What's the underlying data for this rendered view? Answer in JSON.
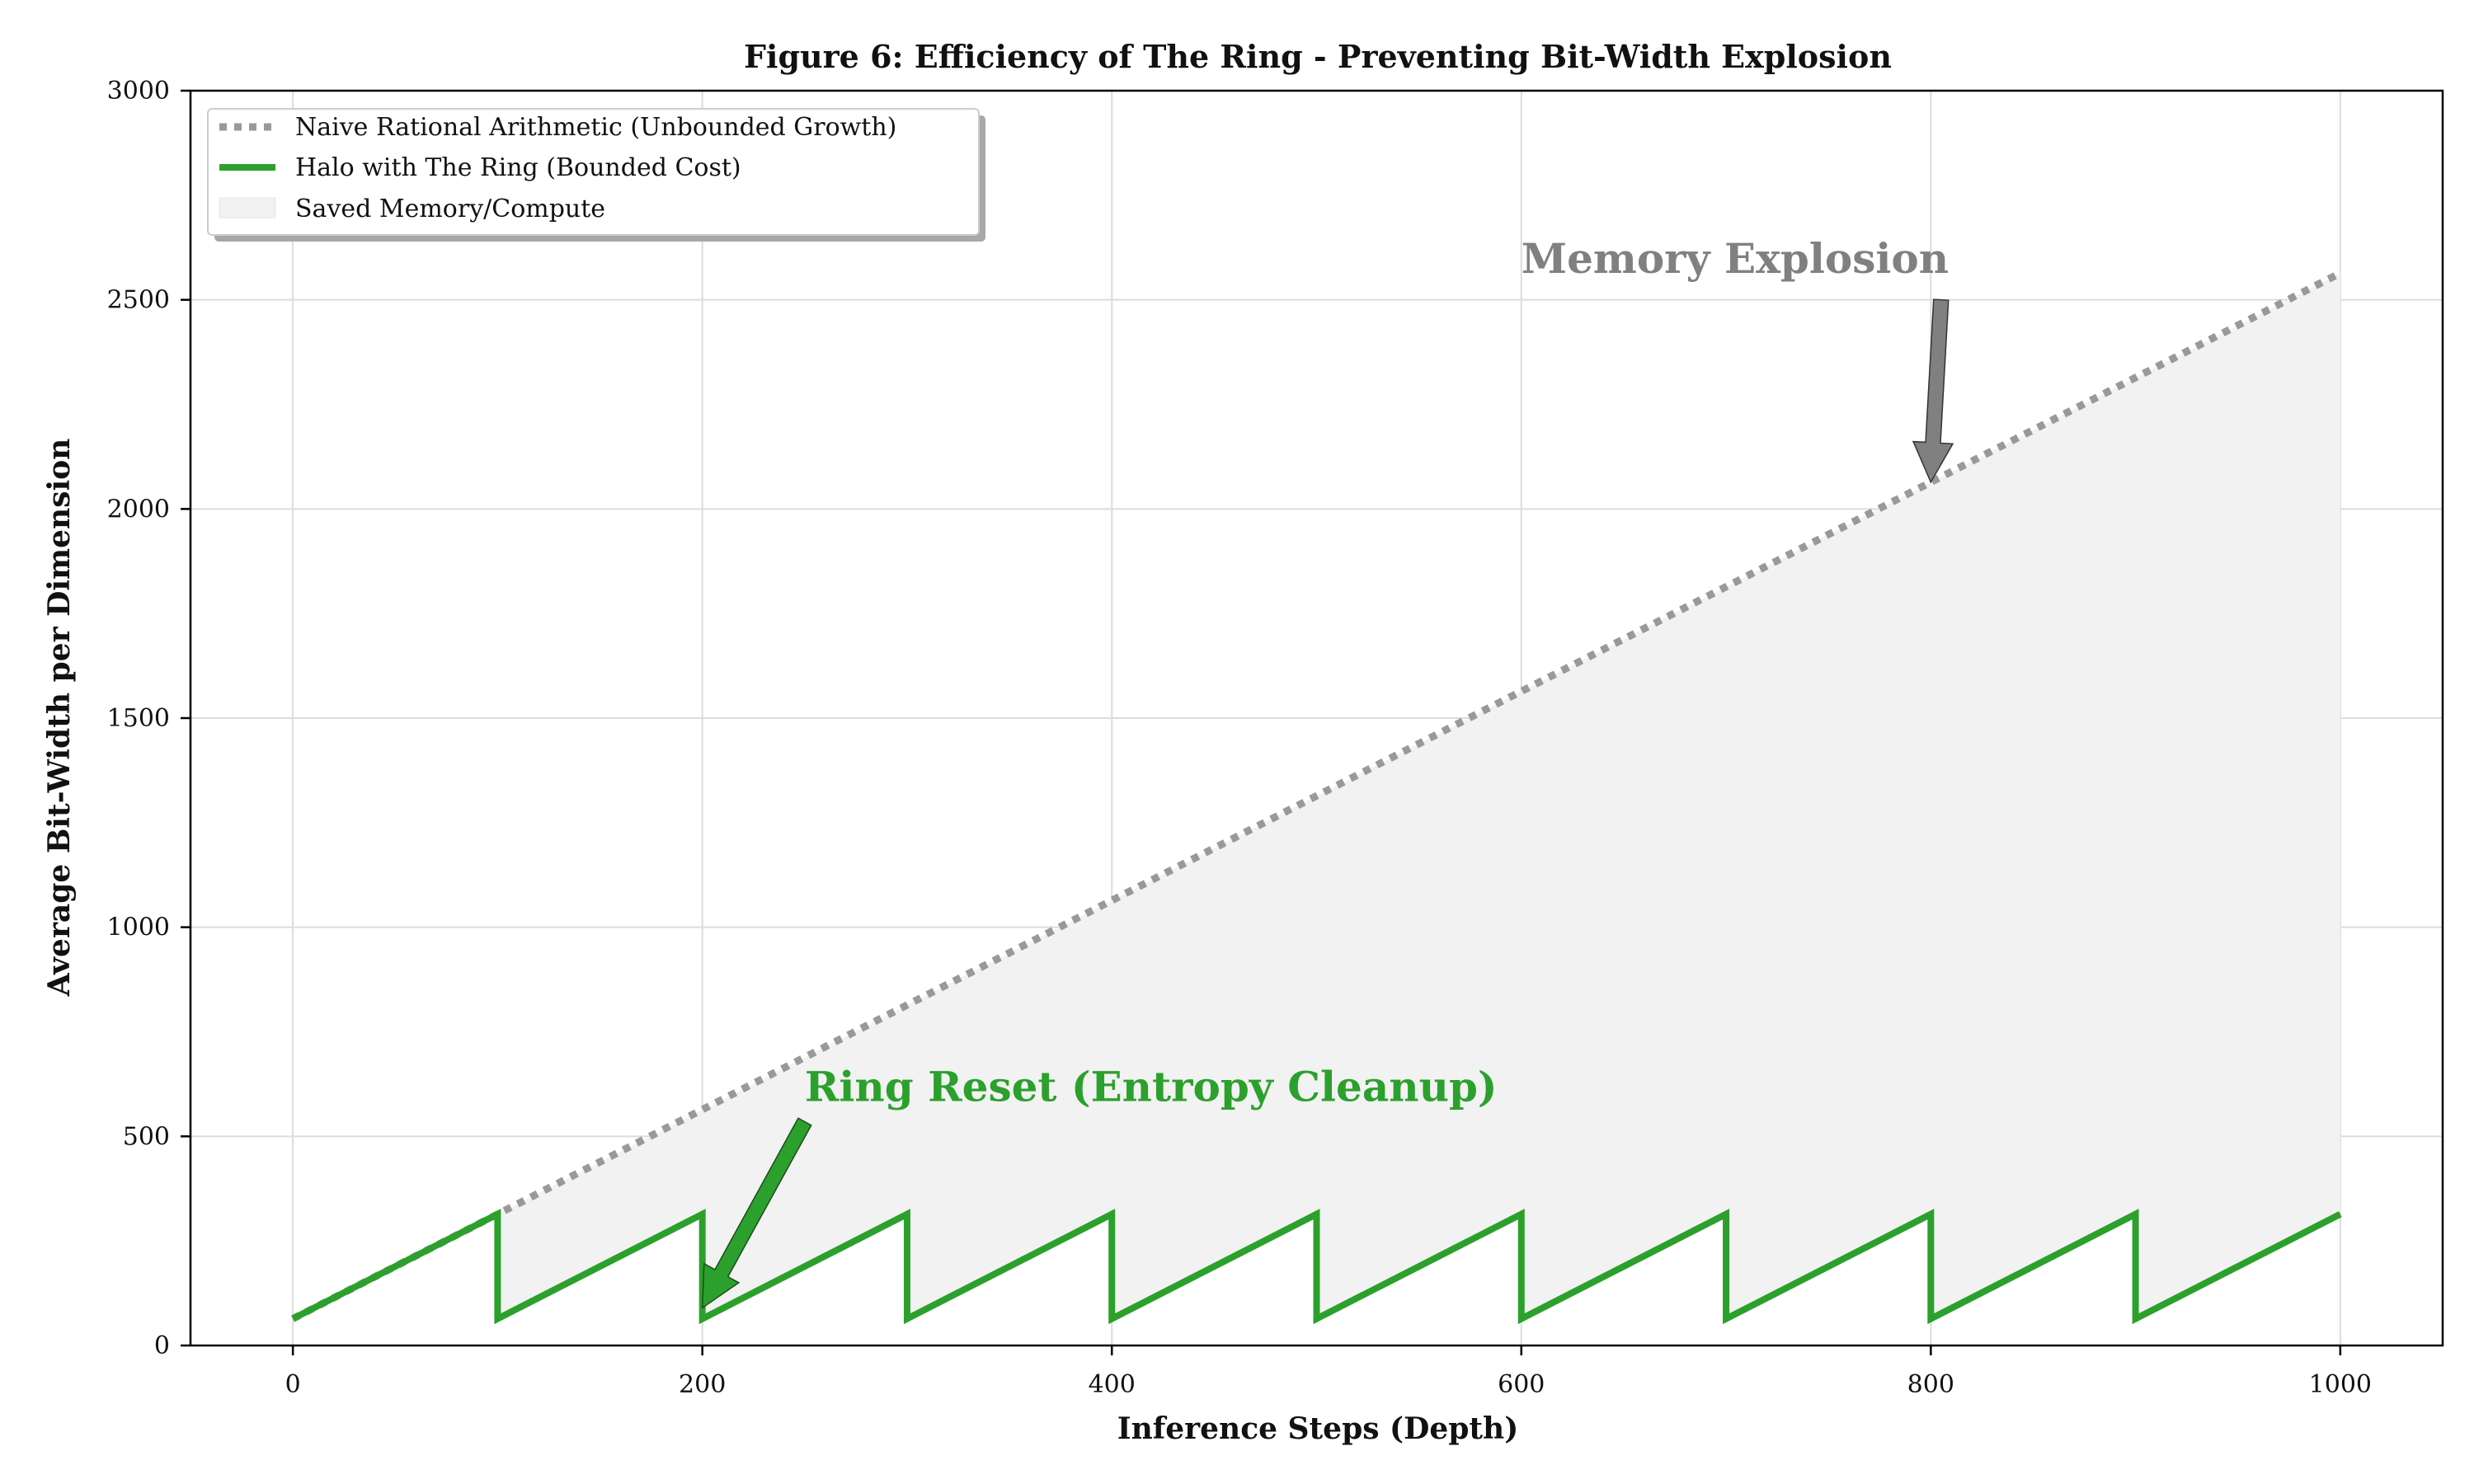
{
  "chart_data": {
    "type": "line",
    "title": "Figure 6: Efficiency of The Ring - Preventing Bit-Width Explosion",
    "xlabel": "Inference Steps (Depth)",
    "ylabel": "Average Bit-Width per Dimension",
    "xlim": [
      -50,
      1050
    ],
    "ylim": [
      0,
      3000
    ],
    "xticks": [
      0,
      200,
      400,
      600,
      800,
      1000
    ],
    "yticks": [
      0,
      500,
      1000,
      1500,
      2000,
      2500,
      3000
    ],
    "grid": true,
    "legend_position": "top-left",
    "series": [
      {
        "name": "Naive Rational Arithmetic (Unbounded Growth)",
        "color": "#999999",
        "style": "dotted",
        "x": [
          0,
          1000
        ],
        "y": [
          64,
          2564
        ]
      },
      {
        "name": "Halo with The Ring (Bounded Cost)",
        "color": "#2ca02c",
        "style": "solid",
        "x": [
          0,
          100,
          100,
          200,
          200,
          300,
          300,
          400,
          400,
          500,
          500,
          600,
          600,
          700,
          700,
          800,
          800,
          900,
          900,
          1000
        ],
        "y": [
          64,
          314,
          64,
          314,
          64,
          314,
          64,
          314,
          64,
          314,
          64,
          314,
          64,
          314,
          64,
          314,
          64,
          314,
          64,
          314
        ]
      }
    ],
    "fill": {
      "name": "Saved Memory/Compute",
      "color": "#f2f2f2",
      "between": [
        "Naive Rational Arithmetic (Unbounded Growth)",
        "Halo with The Ring (Bounded Cost)"
      ]
    },
    "annotations": [
      {
        "text": "Memory Explosion",
        "color": "#808080",
        "xy": [
          800,
          2064
        ],
        "xytext": [
          600,
          2600
        ]
      },
      {
        "text": "Ring Reset (Entropy Cleanup)",
        "color": "#2ca02c",
        "xy": [
          200,
          90
        ],
        "xytext": [
          250,
          620
        ]
      }
    ]
  }
}
